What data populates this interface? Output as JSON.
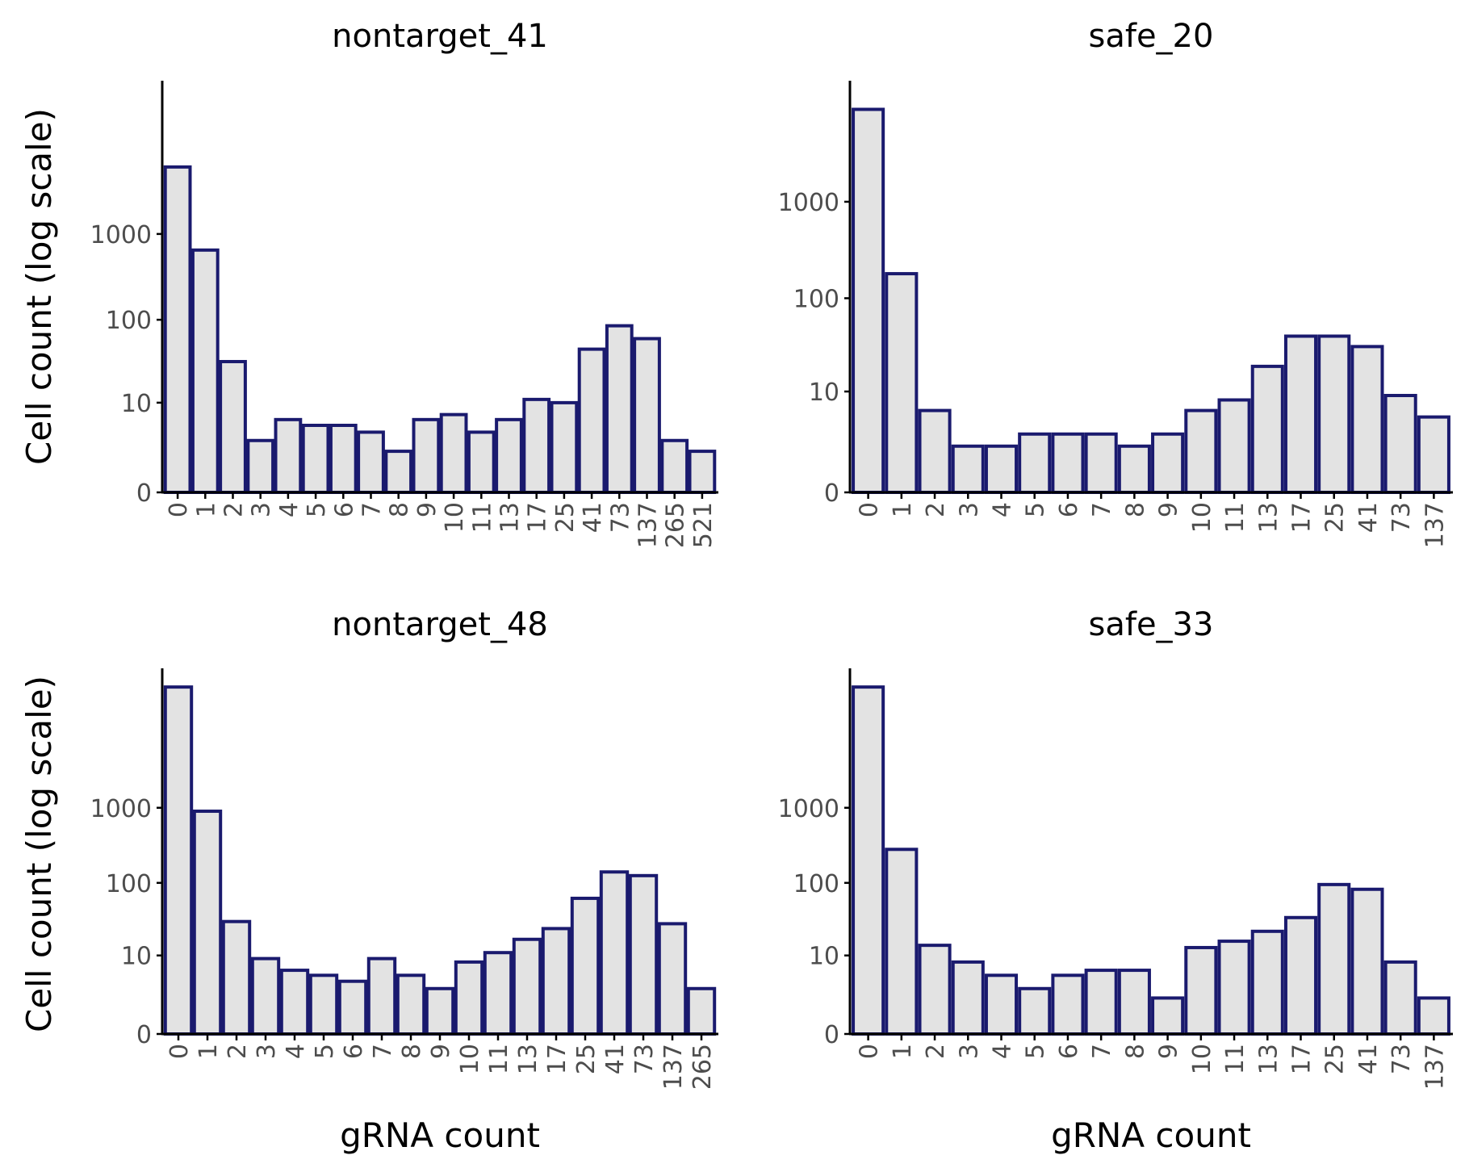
{
  "colors": {
    "bar_fill": "#e3e3e3",
    "bar_stroke": "#1a1a6e",
    "axis": "#000000",
    "tick_text": "#4d4d4d",
    "title_text": "#000000",
    "background": "#ffffff"
  },
  "axes": {
    "ylabel": "Cell count (log scale)",
    "xlabel": "gRNA count"
  },
  "chart_data": [
    {
      "type": "bar",
      "title": "nontarget_41",
      "scale": "log10(count + 1)",
      "yticks": [
        0,
        10,
        100,
        1000
      ],
      "categories": [
        "0",
        "1",
        "2",
        "3",
        "4",
        "5",
        "6",
        "7",
        "8",
        "9",
        "10",
        "11",
        "13",
        "17",
        "25",
        "41",
        "73",
        "137",
        "265",
        "521"
      ],
      "values": [
        6000,
        650,
        32,
        3,
        6,
        5,
        5,
        4,
        2,
        6,
        7,
        4,
        6,
        11,
        10,
        45,
        85,
        60,
        3,
        2
      ]
    },
    {
      "type": "bar",
      "title": "safe_20",
      "scale": "log10(count + 1)",
      "yticks": [
        0,
        10,
        100,
        1000
      ],
      "categories": [
        "0",
        "1",
        "2",
        "3",
        "4",
        "5",
        "6",
        "7",
        "8",
        "9",
        "10",
        "11",
        "13",
        "17",
        "25",
        "41",
        "73",
        "137"
      ],
      "values": [
        9000,
        180,
        6,
        2,
        2,
        3,
        3,
        3,
        2,
        3,
        6,
        8,
        19,
        40,
        40,
        31,
        9,
        5
      ]
    },
    {
      "type": "bar",
      "title": "nontarget_48",
      "scale": "log10(count + 1)",
      "yticks": [
        0,
        10,
        100,
        1000
      ],
      "categories": [
        "0",
        "1",
        "2",
        "3",
        "4",
        "5",
        "6",
        "7",
        "8",
        "9",
        "10",
        "11",
        "13",
        "17",
        "25",
        "41",
        "73",
        "137",
        "265"
      ],
      "values": [
        40000,
        900,
        30,
        9,
        6,
        5,
        4,
        9,
        5,
        3,
        8,
        11,
        17,
        24,
        62,
        140,
        125,
        28,
        3
      ]
    },
    {
      "type": "bar",
      "title": "safe_33",
      "scale": "log10(count + 1)",
      "yticks": [
        0,
        10,
        100,
        1000
      ],
      "categories": [
        "0",
        "1",
        "2",
        "3",
        "4",
        "5",
        "6",
        "7",
        "8",
        "9",
        "10",
        "11",
        "13",
        "17",
        "25",
        "41",
        "73",
        "137"
      ],
      "values": [
        40000,
        280,
        14,
        8,
        5,
        3,
        5,
        6,
        6,
        2,
        13,
        16,
        22,
        34,
        95,
        82,
        8,
        2
      ]
    }
  ]
}
